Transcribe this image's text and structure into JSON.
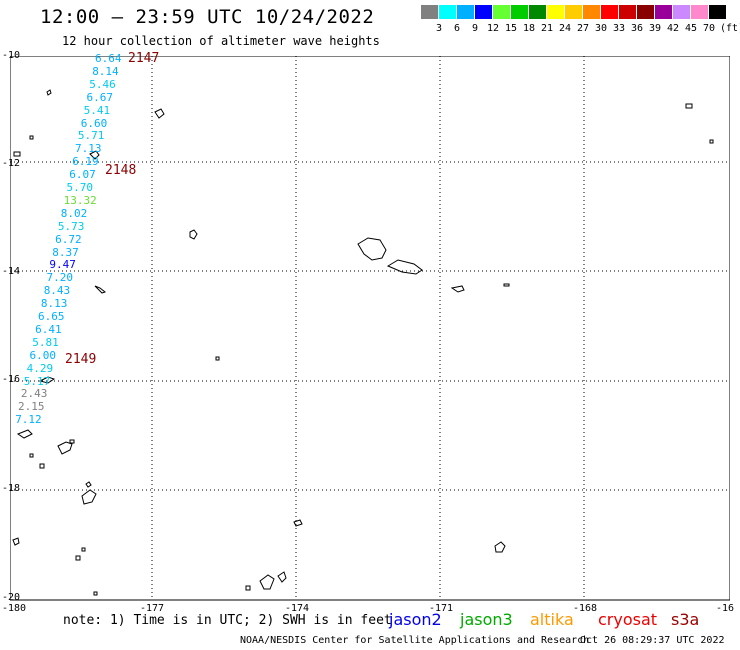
{
  "title": "12:00 – 23:59 UTC 10/24/2022",
  "subtitle": "12 hour collection of altimeter wave heights",
  "colorbar": {
    "colors": [
      "#808080",
      "#00ffff",
      "#00b0ff",
      "#0000ff",
      "#66ff33",
      "#00cc00",
      "#008800",
      "#ffff00",
      "#ffcc00",
      "#ff8800",
      "#ff0000",
      "#cc0000",
      "#880000",
      "#990099",
      "#cc88ff",
      "#ff88cc",
      "#000000"
    ],
    "labels": [
      "3",
      "6",
      "9",
      "12",
      "15",
      "18",
      "21",
      "24",
      "27",
      "30",
      "33",
      "36",
      "39",
      "42",
      "45",
      "70"
    ],
    "unit": "(ft)"
  },
  "axis": {
    "lat_labels": [
      "-10",
      "-12",
      "-14",
      "-16",
      "-18",
      "-20"
    ],
    "lon_labels": [
      "-180",
      "-177",
      "-174",
      "-171",
      "-168",
      "-16"
    ]
  },
  "wave_heights": [
    {
      "v": "6.64",
      "c": "#00b0ff"
    },
    {
      "v": "8.14",
      "c": "#00b0ff"
    },
    {
      "v": "5.46",
      "c": "#00ccee"
    },
    {
      "v": "6.67",
      "c": "#00b0ff"
    },
    {
      "v": "5.41",
      "c": "#00ccee"
    },
    {
      "v": "6.60",
      "c": "#00b0ff"
    },
    {
      "v": "5.71",
      "c": "#00ccee"
    },
    {
      "v": "7.13",
      "c": "#00b0ff"
    },
    {
      "v": "6.19",
      "c": "#00b0ff"
    },
    {
      "v": "6.07",
      "c": "#00b0ff"
    },
    {
      "v": "5.70",
      "c": "#00ccee"
    },
    {
      "v": "13.32",
      "c": "#66dd33"
    },
    {
      "v": "8.02",
      "c": "#00b0ff"
    },
    {
      "v": "5.73",
      "c": "#00ccee"
    },
    {
      "v": "6.72",
      "c": "#00b0ff"
    },
    {
      "v": "8.37",
      "c": "#00b0ff"
    },
    {
      "v": "9.47",
      "c": "#0000ff"
    },
    {
      "v": "7.20",
      "c": "#00b0ff"
    },
    {
      "v": "8.43",
      "c": "#00b0ff"
    },
    {
      "v": "8.13",
      "c": "#00b0ff"
    },
    {
      "v": "6.65",
      "c": "#00b0ff"
    },
    {
      "v": "6.41",
      "c": "#00b0ff"
    },
    {
      "v": "5.81",
      "c": "#00ccee"
    },
    {
      "v": "6.00",
      "c": "#00b0ff"
    },
    {
      "v": "4.29",
      "c": "#00ccee"
    },
    {
      "v": "5.17",
      "c": "#00ccee"
    },
    {
      "v": "2.43",
      "c": "#808080"
    },
    {
      "v": "2.15",
      "c": "#808080"
    },
    {
      "v": "7.12",
      "c": "#00b0ff"
    }
  ],
  "track_labels": [
    "2147",
    "2148",
    "2149"
  ],
  "note": "note: 1) Time is in UTC; 2) SWH is in feet",
  "satellites": [
    {
      "name": "jason2",
      "color": "#0000ee"
    },
    {
      "name": "jason3",
      "color": "#00aa00"
    },
    {
      "name": "altika",
      "color": "#ff9900"
    },
    {
      "name": "cryosat",
      "color": "#ee0000"
    },
    {
      "name": "s3a",
      "color": "#990000"
    }
  ],
  "credit": "NOAA/NESDIS Center for Satellite Applications and Research",
  "timestamp": "Oct 26 08:29:37 UTC 2022"
}
